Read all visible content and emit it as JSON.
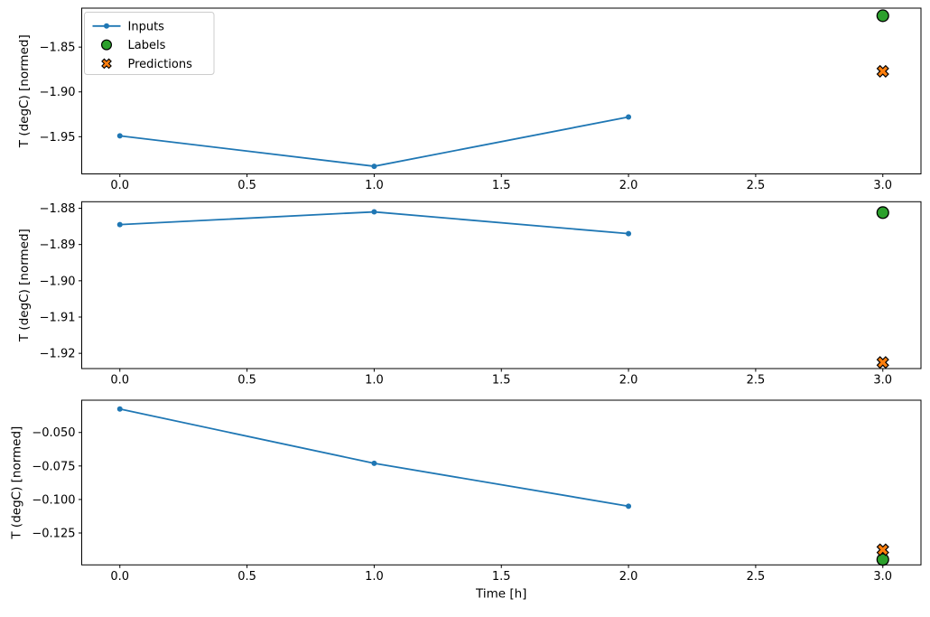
{
  "figure": {
    "background": "#ffffff",
    "text_color": "#000000",
    "spine_color": "#000000"
  },
  "legend": {
    "position": "upper left",
    "border_color": "#cccccc",
    "background": "#ffffff",
    "entries": [
      {
        "label": "Inputs",
        "marker": "line-dot",
        "color": "#1f77b4",
        "edge": "#1f77b4"
      },
      {
        "label": "Labels",
        "marker": "circle",
        "color": "#2ca02c",
        "edge": "#000000"
      },
      {
        "label": "Predictions",
        "marker": "X",
        "color": "#ff7f0e",
        "edge": "#000000"
      }
    ]
  },
  "chart_data": [
    {
      "type": "line",
      "title": "",
      "xlabel": "",
      "ylabel": "T (degC) [normed]",
      "xlim": [
        -0.15,
        3.15
      ],
      "ylim": [
        -1.9915,
        -1.8065
      ],
      "grid": false,
      "legend": true,
      "x_ticks": {
        "values": [
          0.0,
          0.5,
          1.0,
          1.5,
          2.0,
          2.5,
          3.0
        ],
        "labels": [
          "0.0",
          "0.5",
          "1.0",
          "1.5",
          "2.0",
          "2.5",
          "3.0"
        ]
      },
      "y_ticks": {
        "values": [
          -1.85,
          -1.9,
          -1.95
        ],
        "labels": [
          "−1.85",
          "−1.90",
          "−1.95"
        ]
      },
      "series": [
        {
          "name": "Inputs",
          "type": "line",
          "marker": "dot",
          "color": "#1f77b4",
          "edge": "#1f77b4",
          "x": [
            0,
            1,
            2
          ],
          "y": [
            -1.949,
            -1.983,
            -1.928
          ]
        },
        {
          "name": "Labels",
          "type": "scatter",
          "marker": "circle",
          "color": "#2ca02c",
          "edge": "#000000",
          "x": [
            3
          ],
          "y": [
            -1.815
          ]
        },
        {
          "name": "Predictions",
          "type": "scatter",
          "marker": "X",
          "color": "#ff7f0e",
          "edge": "#000000",
          "x": [
            3
          ],
          "y": [
            -1.877
          ]
        }
      ]
    },
    {
      "type": "line",
      "title": "",
      "xlabel": "",
      "ylabel": "T (degC) [normed]",
      "xlim": [
        -0.15,
        3.15
      ],
      "ylim": [
        -1.9242,
        -1.8782
      ],
      "grid": false,
      "legend": false,
      "x_ticks": {
        "values": [
          0.0,
          0.5,
          1.0,
          1.5,
          2.0,
          2.5,
          3.0
        ],
        "labels": [
          "0.0",
          "0.5",
          "1.0",
          "1.5",
          "2.0",
          "2.5",
          "3.0"
        ]
      },
      "y_ticks": {
        "values": [
          -1.88,
          -1.89,
          -1.9,
          -1.91,
          -1.92
        ],
        "labels": [
          "−1.88",
          "−1.89",
          "−1.90",
          "−1.91",
          "−1.92"
        ]
      },
      "series": [
        {
          "name": "Inputs",
          "type": "line",
          "marker": "dot",
          "color": "#1f77b4",
          "edge": "#1f77b4",
          "x": [
            0,
            1,
            2
          ],
          "y": [
            -1.8845,
            -1.881,
            -1.887
          ]
        },
        {
          "name": "Labels",
          "type": "scatter",
          "marker": "circle",
          "color": "#2ca02c",
          "edge": "#000000",
          "x": [
            3
          ],
          "y": [
            -1.8812
          ]
        },
        {
          "name": "Predictions",
          "type": "scatter",
          "marker": "X",
          "color": "#ff7f0e",
          "edge": "#000000",
          "x": [
            3
          ],
          "y": [
            -1.9225
          ]
        }
      ]
    },
    {
      "type": "line",
      "title": "",
      "xlabel": "Time [h]",
      "ylabel": "T (degC) [normed]",
      "xlim": [
        -0.15,
        3.15
      ],
      "ylim": [
        -0.1488,
        -0.0259
      ],
      "grid": false,
      "legend": false,
      "x_ticks": {
        "values": [
          0.0,
          0.5,
          1.0,
          1.5,
          2.0,
          2.5,
          3.0
        ],
        "labels": [
          "0.0",
          "0.5",
          "1.0",
          "1.5",
          "2.0",
          "2.5",
          "3.0"
        ]
      },
      "y_ticks": {
        "values": [
          -0.05,
          -0.075,
          -0.1,
          -0.125
        ],
        "labels": [
          "−0.050",
          "−0.075",
          "−0.100",
          "−0.125"
        ]
      },
      "series": [
        {
          "name": "Inputs",
          "type": "line",
          "marker": "dot",
          "color": "#1f77b4",
          "edge": "#1f77b4",
          "x": [
            0,
            1,
            2
          ],
          "y": [
            -0.0325,
            -0.073,
            -0.105
          ]
        },
        {
          "name": "Labels",
          "type": "scatter",
          "marker": "circle",
          "color": "#2ca02c",
          "edge": "#000000",
          "x": [
            3
          ],
          "y": [
            -0.1448
          ]
        },
        {
          "name": "Predictions",
          "type": "scatter",
          "marker": "X",
          "color": "#ff7f0e",
          "edge": "#000000",
          "x": [
            3
          ],
          "y": [
            -0.1375
          ]
        }
      ]
    }
  ]
}
